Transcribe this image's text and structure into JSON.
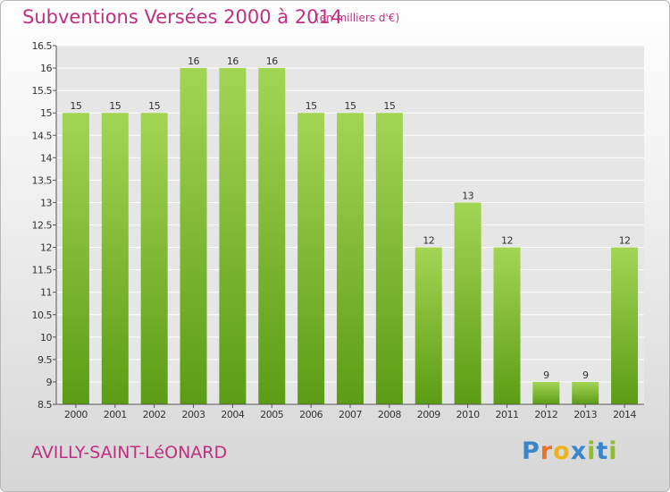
{
  "title": "Subventions Versées 2000 à 2014",
  "unit_note": "(en milliers d'€)",
  "commune": "AVILLY-SAINT-LéONARD",
  "logo": {
    "letters": [
      "P",
      "r",
      "o",
      "x",
      "i",
      "t",
      "i"
    ],
    "colors": [
      "#3a86c8",
      "#e8742a",
      "#f0b21a",
      "#3a86c8",
      "#8cbf2a",
      "#3a86c8",
      "#8cbf2a"
    ]
  },
  "colors": {
    "bar_top": "#a3d554",
    "bar_bottom": "#5c9c14",
    "title": "#c0307f"
  },
  "chart_data": {
    "type": "bar",
    "categories": [
      "2000",
      "2001",
      "2002",
      "2003",
      "2004",
      "2005",
      "2006",
      "2007",
      "2008",
      "2009",
      "2010",
      "2011",
      "2012",
      "2013",
      "2014"
    ],
    "values": [
      15,
      15,
      15,
      16,
      16,
      16,
      15,
      15,
      15,
      12,
      13,
      12,
      9,
      9,
      12
    ],
    "data_labels": [
      "15",
      "15",
      "15",
      "16",
      "16",
      "16",
      "15",
      "15",
      "15",
      "12",
      "13",
      "12",
      "9",
      "9",
      "12"
    ],
    "ylim": [
      8.5,
      16.5
    ],
    "yticks": [
      "8.5",
      "9",
      "9.5",
      "10",
      "10.5",
      "11",
      "11.5",
      "12",
      "12.5",
      "13",
      "13.5",
      "14",
      "14.5",
      "15",
      "15.5",
      "16",
      "16.5"
    ],
    "grid": true
  }
}
